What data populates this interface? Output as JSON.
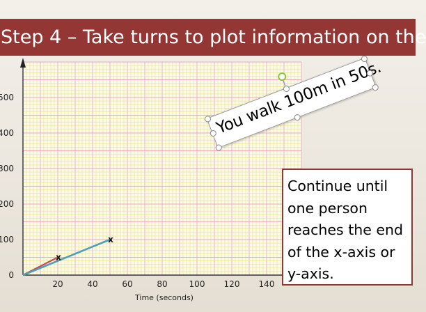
{
  "title": "Step 4 – Take turns to plot information on the",
  "callout": {
    "text": "You walk 100m in 50s."
  },
  "instruction": {
    "text": "Continue until\none person\nreaches the end\nof the x-axis or\ny-axis."
  },
  "chart_data": {
    "type": "line",
    "xlabel": "Time (seconds)",
    "ylabel": "",
    "x_ticks": [
      "0",
      "20",
      "40",
      "60",
      "80",
      "100",
      "120",
      "140"
    ],
    "y_ticks": [
      "0",
      "100",
      "200",
      "300",
      "400",
      "500"
    ],
    "y_tick_prefix_visible": [
      "0",
      "100",
      "200",
      "300",
      "400",
      "500"
    ],
    "xlim": [
      0,
      160
    ],
    "ylim": [
      0,
      600
    ],
    "grid": true,
    "series": [
      {
        "color": "#c0504d",
        "points": [
          [
            0,
            0
          ],
          [
            20,
            50
          ]
        ]
      },
      {
        "color": "#4f9eb8",
        "points": [
          [
            0,
            0
          ],
          [
            50,
            100
          ]
        ]
      }
    ],
    "markers": [
      {
        "label": "x",
        "x": 20,
        "y": 50
      },
      {
        "label": "x",
        "x": 50,
        "y": 100
      }
    ],
    "colors": {
      "grid_yellow": "#e8dd78",
      "grid_pink": "#e6a0b6",
      "axis": "#333333"
    }
  }
}
